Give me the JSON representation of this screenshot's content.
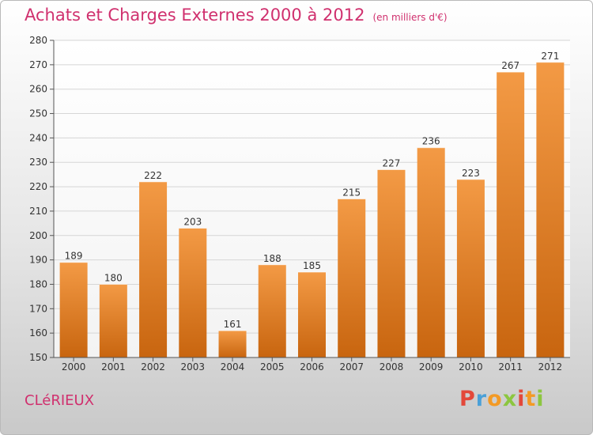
{
  "title": "Achats et Charges Externes 2000 à 2012",
  "unit": "(en milliers d'€)",
  "town": "CLéRIEUX",
  "logo": {
    "letters": [
      "P",
      "r",
      "o",
      "x",
      "i",
      "t",
      "i"
    ],
    "colors": [
      "#e3483a",
      "#4aa0d8",
      "#f39a25",
      "#8cc63f",
      "#e3483a",
      "#f39a25",
      "#8cc63f"
    ]
  },
  "colors": {
    "bar": "#f39a45",
    "bar_dark": "#c8650f",
    "title": "#d0306e",
    "grid": "#d6d6d6"
  },
  "chart_data": {
    "type": "bar",
    "categories": [
      "2000",
      "2001",
      "2002",
      "2003",
      "2004",
      "2005",
      "2006",
      "2007",
      "2008",
      "2009",
      "2010",
      "2011",
      "2012"
    ],
    "values": [
      189,
      180,
      222,
      203,
      161,
      188,
      185,
      215,
      227,
      236,
      223,
      267,
      271
    ],
    "ylim": [
      150,
      280
    ],
    "yticks": [
      150,
      160,
      170,
      180,
      190,
      200,
      210,
      220,
      230,
      240,
      250,
      260,
      270,
      280
    ],
    "grid": true,
    "data_labels": true
  }
}
